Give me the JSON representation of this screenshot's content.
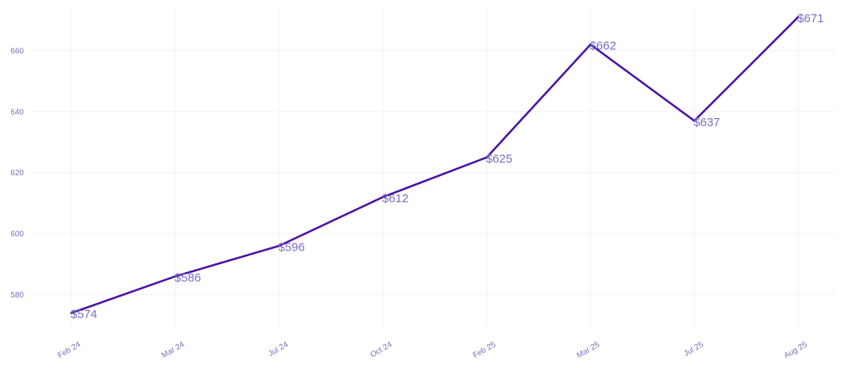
{
  "chart_data": {
    "type": "line",
    "title": "",
    "xlabel": "",
    "ylabel": "",
    "categories": [
      "Feb 24",
      "Mar 24",
      "Jul 24",
      "Oct 24",
      "Feb 25",
      "Mar 25",
      "Jul 25",
      "Aug 25"
    ],
    "series": [
      {
        "values": [
          574,
          586,
          596,
          612,
          625,
          662,
          637,
          671
        ],
        "data_labels": [
          "$574",
          "$586",
          "$596",
          "$612",
          "$625",
          "$662",
          "$637",
          "$671"
        ]
      }
    ],
    "y_ticks": [
      "580",
      "600",
      "620",
      "640",
      "660"
    ],
    "ylim": [
      570,
      674
    ],
    "grid": true,
    "legend": "none",
    "colors": {
      "line": "#4a14a6",
      "text": "#7a6fc0",
      "grid": "#f6f5fb"
    }
  }
}
